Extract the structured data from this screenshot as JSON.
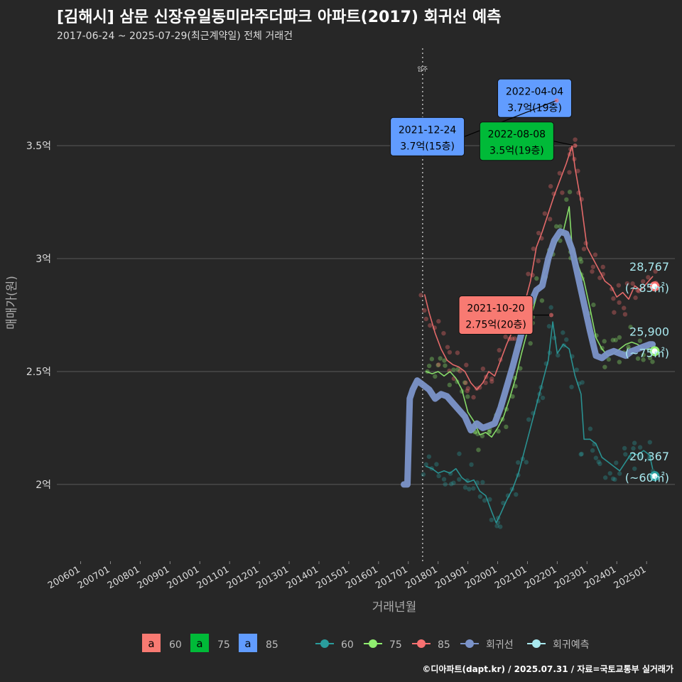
{
  "title": "[김해시] 삼문 신장유일동미라주더파크 아파트(2017) 회귀선 예측",
  "subtitle": "2017-06-24 ~ 2025-07-29(최근계약일) 전체 거래건",
  "credit": "©디아파트(dapt.kr) / 2025.07.31 / 자료=국토교통부 실거래가",
  "colors": {
    "s60": "#2a9d9d",
    "s75": "#90ee70",
    "s85": "#f87171",
    "regression": "#7b93c9",
    "forecast": "#a8e8ee",
    "label60": "#f87a72",
    "label75": "#00ba38",
    "label85": "#619cff"
  },
  "chart_data": {
    "type": "line",
    "xlabel": "거래년월",
    "ylabel": "매매가(원)",
    "x_ticks": [
      "200601",
      "200701",
      "200801",
      "200901",
      "201001",
      "201101",
      "201201",
      "201301",
      "201401",
      "201501",
      "201601",
      "201701",
      "201801",
      "201901",
      "202001",
      "202101",
      "202201",
      "202301",
      "202401",
      "202501"
    ],
    "y_ticks": [
      {
        "value": 2.0,
        "label": "2억"
      },
      {
        "value": 2.5,
        "label": "2.5억"
      },
      {
        "value": 3.0,
        "label": "3억"
      },
      {
        "value": 3.5,
        "label": "3.5억"
      }
    ],
    "ylim": [
      1.66,
      3.95
    ],
    "xlim": [
      2005.2,
      2025.95
    ],
    "vline": {
      "x": 2017.48,
      "label": "입주"
    },
    "series": [
      {
        "name": "60",
        "color_key": "s60",
        "points": [
          [
            2017.6,
            2.08
          ],
          [
            2017.8,
            2.07
          ],
          [
            2018.0,
            2.05
          ],
          [
            2018.2,
            2.06
          ],
          [
            2018.4,
            2.05
          ],
          [
            2018.6,
            2.07
          ],
          [
            2018.8,
            2.03
          ],
          [
            2019.0,
            2.01
          ],
          [
            2019.2,
            2.02
          ],
          [
            2019.4,
            1.97
          ],
          [
            2019.6,
            1.95
          ],
          [
            2019.8,
            1.88
          ],
          [
            2019.95,
            1.83
          ],
          [
            2020.1,
            1.87
          ],
          [
            2020.3,
            1.93
          ],
          [
            2020.5,
            1.98
          ],
          [
            2020.7,
            2.05
          ],
          [
            2020.9,
            2.15
          ],
          [
            2021.1,
            2.25
          ],
          [
            2021.3,
            2.35
          ],
          [
            2021.5,
            2.45
          ],
          [
            2021.7,
            2.55
          ],
          [
            2021.85,
            2.72
          ],
          [
            2022.0,
            2.58
          ],
          [
            2022.2,
            2.62
          ],
          [
            2022.4,
            2.6
          ],
          [
            2022.6,
            2.48
          ],
          [
            2022.8,
            2.4
          ],
          [
            2022.9,
            2.2
          ],
          [
            2023.1,
            2.2
          ],
          [
            2023.3,
            2.18
          ],
          [
            2023.5,
            2.12
          ],
          [
            2023.7,
            2.1
          ],
          [
            2023.9,
            2.08
          ],
          [
            2024.1,
            2.06
          ],
          [
            2024.3,
            2.1
          ],
          [
            2024.5,
            2.14
          ],
          [
            2024.7,
            2.13
          ],
          [
            2024.9,
            2.15
          ],
          [
            2025.1,
            2.13
          ],
          [
            2025.2,
            2.07
          ]
        ]
      },
      {
        "name": "75",
        "color_key": "s75",
        "points": [
          [
            2017.6,
            2.5
          ],
          [
            2017.8,
            2.49
          ],
          [
            2018.0,
            2.5
          ],
          [
            2018.2,
            2.48
          ],
          [
            2018.4,
            2.5
          ],
          [
            2018.6,
            2.47
          ],
          [
            2018.8,
            2.42
          ],
          [
            2019.0,
            2.32
          ],
          [
            2019.2,
            2.28
          ],
          [
            2019.4,
            2.22
          ],
          [
            2019.6,
            2.23
          ],
          [
            2019.8,
            2.21
          ],
          [
            2020.0,
            2.25
          ],
          [
            2020.2,
            2.3
          ],
          [
            2020.4,
            2.38
          ],
          [
            2020.6,
            2.47
          ],
          [
            2020.8,
            2.58
          ],
          [
            2021.0,
            2.68
          ],
          [
            2021.2,
            2.78
          ],
          [
            2021.4,
            2.88
          ],
          [
            2021.6,
            2.95
          ],
          [
            2021.8,
            3.02
          ],
          [
            2022.0,
            3.08
          ],
          [
            2022.2,
            3.12
          ],
          [
            2022.4,
            3.23
          ],
          [
            2022.5,
            3.05
          ],
          [
            2022.7,
            2.97
          ],
          [
            2022.9,
            2.9
          ],
          [
            2023.1,
            2.78
          ],
          [
            2023.3,
            2.65
          ],
          [
            2023.5,
            2.6
          ],
          [
            2023.7,
            2.57
          ],
          [
            2023.9,
            2.58
          ],
          [
            2024.1,
            2.6
          ],
          [
            2024.3,
            2.62
          ],
          [
            2024.5,
            2.63
          ],
          [
            2024.7,
            2.62
          ],
          [
            2024.9,
            2.6
          ],
          [
            2025.1,
            2.6
          ],
          [
            2025.2,
            2.6
          ]
        ]
      },
      {
        "name": "85",
        "color_key": "s85",
        "points": [
          [
            2017.55,
            2.84
          ],
          [
            2017.7,
            2.76
          ],
          [
            2017.9,
            2.67
          ],
          [
            2018.1,
            2.6
          ],
          [
            2018.3,
            2.55
          ],
          [
            2018.5,
            2.53
          ],
          [
            2018.7,
            2.52
          ],
          [
            2018.9,
            2.5
          ],
          [
            2019.1,
            2.45
          ],
          [
            2019.3,
            2.42
          ],
          [
            2019.5,
            2.45
          ],
          [
            2019.7,
            2.5
          ],
          [
            2019.9,
            2.48
          ],
          [
            2020.1,
            2.55
          ],
          [
            2020.3,
            2.62
          ],
          [
            2020.5,
            2.68
          ],
          [
            2020.7,
            2.72
          ],
          [
            2020.9,
            2.8
          ],
          [
            2021.1,
            2.9
          ],
          [
            2021.3,
            3.05
          ],
          [
            2021.5,
            3.12
          ],
          [
            2021.7,
            3.2
          ],
          [
            2021.9,
            3.28
          ],
          [
            2022.1,
            3.35
          ],
          [
            2022.3,
            3.42
          ],
          [
            2022.5,
            3.5
          ],
          [
            2022.6,
            3.4
          ],
          [
            2022.8,
            3.25
          ],
          [
            2023.0,
            3.05
          ],
          [
            2023.2,
            3.0
          ],
          [
            2023.4,
            2.95
          ],
          [
            2023.6,
            2.9
          ],
          [
            2023.8,
            2.88
          ],
          [
            2024.0,
            2.83
          ],
          [
            2024.2,
            2.85
          ],
          [
            2024.4,
            2.82
          ],
          [
            2024.6,
            2.88
          ],
          [
            2024.8,
            2.86
          ],
          [
            2025.0,
            2.89
          ],
          [
            2025.2,
            2.92
          ]
        ]
      },
      {
        "name": "회귀선",
        "color_key": "regression",
        "points": [
          [
            2016.85,
            2.0
          ],
          [
            2016.97,
            2.0
          ],
          [
            2017.05,
            2.38
          ],
          [
            2017.15,
            2.42
          ],
          [
            2017.3,
            2.46
          ],
          [
            2017.5,
            2.44
          ],
          [
            2017.7,
            2.42
          ],
          [
            2017.9,
            2.38
          ],
          [
            2018.1,
            2.4
          ],
          [
            2018.3,
            2.39
          ],
          [
            2018.5,
            2.36
          ],
          [
            2018.7,
            2.33
          ],
          [
            2018.9,
            2.3
          ],
          [
            2019.1,
            2.24
          ],
          [
            2019.3,
            2.27
          ],
          [
            2019.5,
            2.25
          ],
          [
            2019.7,
            2.26
          ],
          [
            2019.9,
            2.27
          ],
          [
            2020.1,
            2.34
          ],
          [
            2020.3,
            2.43
          ],
          [
            2020.5,
            2.52
          ],
          [
            2020.7,
            2.62
          ],
          [
            2020.9,
            2.72
          ],
          [
            2021.1,
            2.8
          ],
          [
            2021.3,
            2.86
          ],
          [
            2021.5,
            2.88
          ],
          [
            2021.7,
            3.0
          ],
          [
            2021.9,
            3.08
          ],
          [
            2022.1,
            3.12
          ],
          [
            2022.3,
            3.11
          ],
          [
            2022.5,
            3.04
          ],
          [
            2022.7,
            2.92
          ],
          [
            2022.9,
            2.8
          ],
          [
            2023.1,
            2.68
          ],
          [
            2023.3,
            2.57
          ],
          [
            2023.5,
            2.56
          ],
          [
            2023.7,
            2.58
          ],
          [
            2023.9,
            2.59
          ],
          [
            2024.1,
            2.58
          ],
          [
            2024.3,
            2.57
          ],
          [
            2024.5,
            2.59
          ],
          [
            2024.7,
            2.6
          ],
          [
            2024.9,
            2.61
          ],
          [
            2025.1,
            2.62
          ],
          [
            2025.2,
            2.62
          ]
        ]
      }
    ],
    "end_points": [
      {
        "name": "85",
        "x": 2025.27,
        "y": 2.877,
        "color_key": "s85"
      },
      {
        "name": "75",
        "x": 2025.27,
        "y": 2.59,
        "color_key": "s75"
      },
      {
        "name": "60",
        "x": 2025.27,
        "y": 2.037,
        "color_key": "s60"
      }
    ],
    "end_labels": [
      {
        "value": "28,767",
        "area": "(~85㎡)",
        "y": 2.877
      },
      {
        "value": "25,900",
        "area": "(~75㎡)",
        "y": 2.59
      },
      {
        "value": "20,367",
        "area": "(~60㎡)",
        "y": 2.037
      }
    ],
    "annotations": [
      {
        "date": "2022-04-04",
        "price": "3.7억(19층)",
        "x": 2022.26,
        "y": 3.7,
        "color_key": "label85",
        "box_x": 2020.0,
        "box_y": 3.71
      },
      {
        "date": "2021-12-24",
        "price": "3.7억(15층)",
        "x": 2021.98,
        "y": 3.7,
        "color_key": "label85",
        "box_x": 2016.4,
        "box_y": 3.54
      },
      {
        "date": "2022-08-08",
        "price": "3.5억(19층)",
        "x": 2022.6,
        "y": 3.5,
        "color_key": "label75",
        "box_x": 2019.4,
        "box_y": 3.52
      },
      {
        "date": "2021-10-20",
        "price": "2.75억(20층)",
        "x": 2021.8,
        "y": 2.75,
        "color_key": "label60",
        "box_x": 2018.7,
        "box_y": 2.75
      }
    ],
    "legend": {
      "placement": "bottom",
      "text_items": [
        {
          "glyph": "a",
          "label": "60",
          "color_key": "label60"
        },
        {
          "glyph": "a",
          "label": "75",
          "color_key": "label75"
        },
        {
          "glyph": "a",
          "label": "85",
          "color_key": "label85"
        }
      ],
      "line_items": [
        {
          "label": "60",
          "color_key": "s60"
        },
        {
          "label": "75",
          "color_key": "s75"
        },
        {
          "label": "85",
          "color_key": "s85"
        },
        {
          "label": "회귀선",
          "color_key": "regression"
        },
        {
          "label": "회귀예측",
          "color_key": "forecast"
        }
      ]
    }
  }
}
